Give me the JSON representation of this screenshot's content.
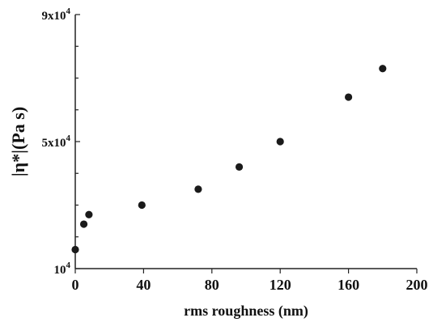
{
  "chart_data": {
    "type": "scatter",
    "title": "",
    "xlabel": "rms roughness (nm)",
    "ylabel": "|η*|(Pa s)",
    "xlim": [
      0,
      200
    ],
    "ylim": [
      10000,
      90000
    ],
    "xticks": [
      0,
      40,
      80,
      120,
      160,
      200
    ],
    "xtick_labels": [
      "0",
      "40",
      "80",
      "120",
      "160",
      "200"
    ],
    "yticks": [
      10000,
      50000,
      90000
    ],
    "ytick_labels": [
      {
        "base": "10",
        "exp": "4"
      },
      {
        "base": "5x10",
        "exp": "4"
      },
      {
        "base": "9x10",
        "exp": "4"
      }
    ],
    "minor_yticks": [
      20000,
      30000,
      40000,
      60000,
      70000,
      80000
    ],
    "grid": false,
    "series": [
      {
        "x": [
          0,
          5,
          8,
          39,
          72,
          96,
          120,
          160,
          180
        ],
        "y": [
          16000,
          24000,
          27000,
          30000,
          35000,
          42000,
          50000,
          64000,
          73000
        ]
      }
    ],
    "marker_color": "#1a1a1a"
  }
}
